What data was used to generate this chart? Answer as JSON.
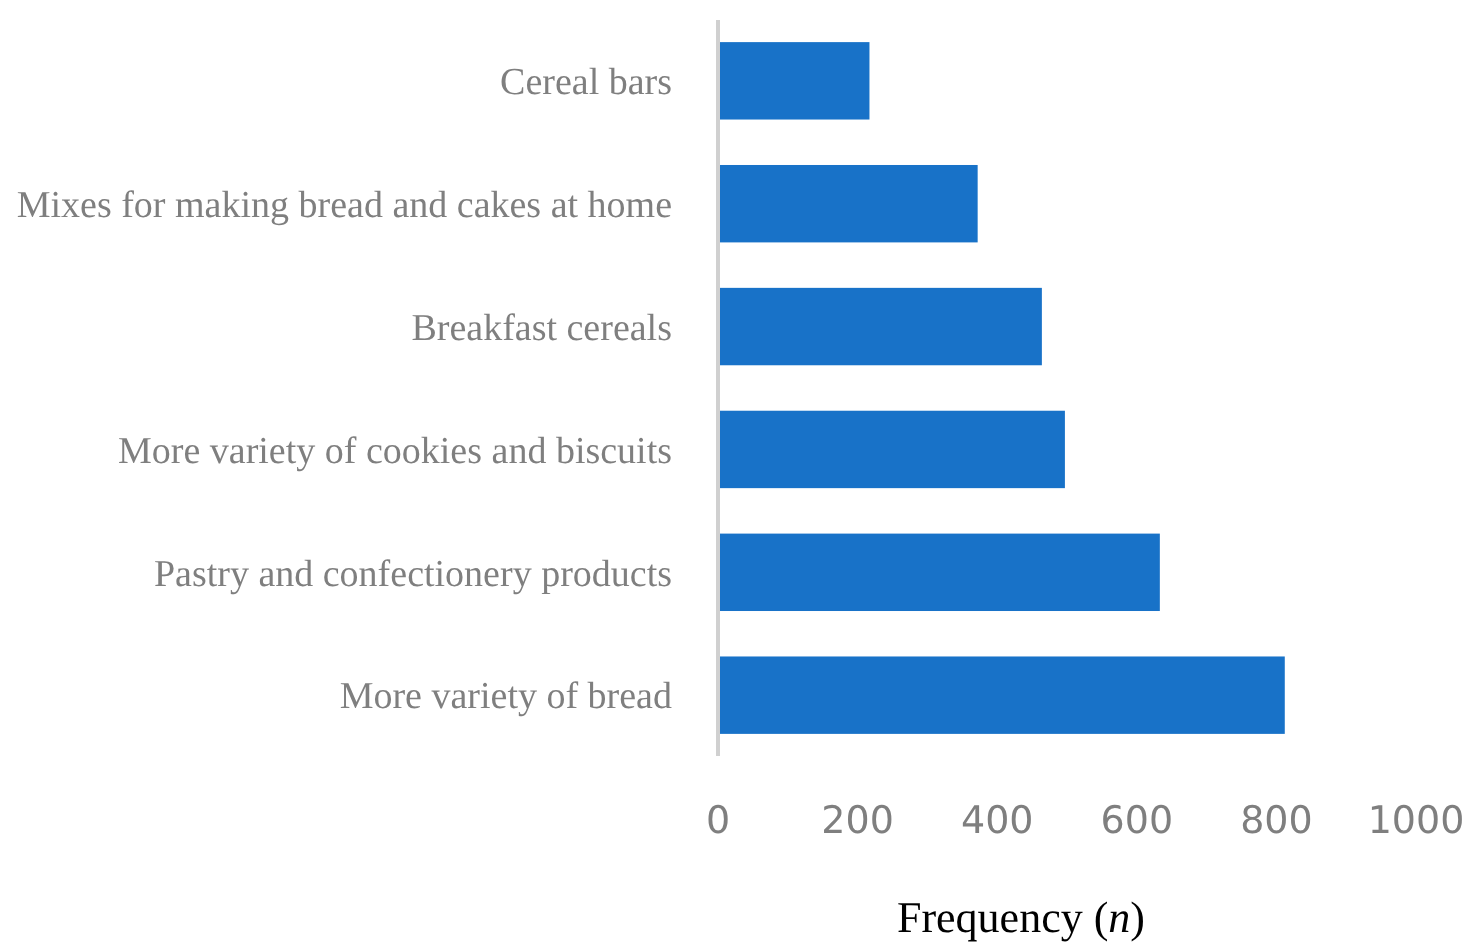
{
  "chart_data": {
    "type": "bar",
    "orientation": "horizontal",
    "xlabel": "Frequency (n)",
    "categories": [
      "Cereal bars",
      "Mixes for making bread and cakes at home",
      "Breakfast cereals",
      "More variety of cookies and biscuits",
      "Pastry and confectionery products",
      "More variety of bread"
    ],
    "values": [
      217,
      372,
      464,
      497,
      633,
      812
    ],
    "color": "#1872c8",
    "xlim": [
      0,
      1000
    ],
    "xticks": [
      0,
      200,
      400,
      600,
      800,
      1000
    ],
    "grid": false
  }
}
